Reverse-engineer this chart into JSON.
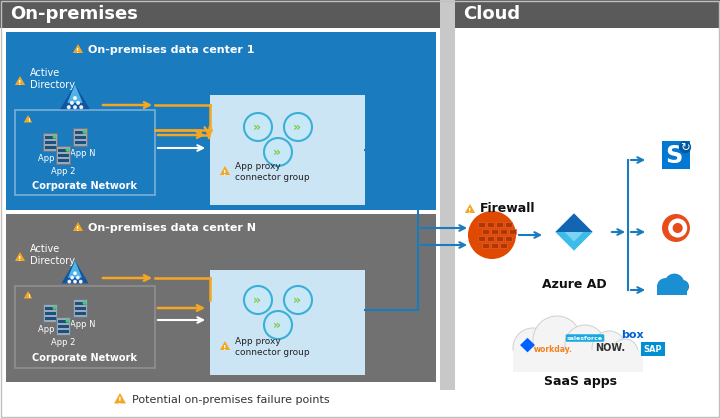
{
  "bg_color": "#ffffff",
  "header_gray": "#5a5a5a",
  "on_prem_header": "On-premises",
  "cloud_header": "Cloud",
  "dc1_bg": "#1a7bbf",
  "dc1_label": "On-premises data center 1",
  "dc2_bg": "#717171",
  "dc2_label": "On-premises data center N",
  "corp_net_label": "Corporate Network",
  "app_proxy_label": "App proxy\nconnector group",
  "azure_ad_label": "Azure AD",
  "firewall_label": "Firewall",
  "saas_label": "SaaS apps",
  "failure_label": "Potential on-premises failure points",
  "warn_color": "#f5a623",
  "arrow_blue": "#1a7bbf",
  "connector_bg": "#cce5f5",
  "firewall_color": "#e04a00",
  "divider_color": "#c8c8c8",
  "border_color": "#c0c0c0"
}
